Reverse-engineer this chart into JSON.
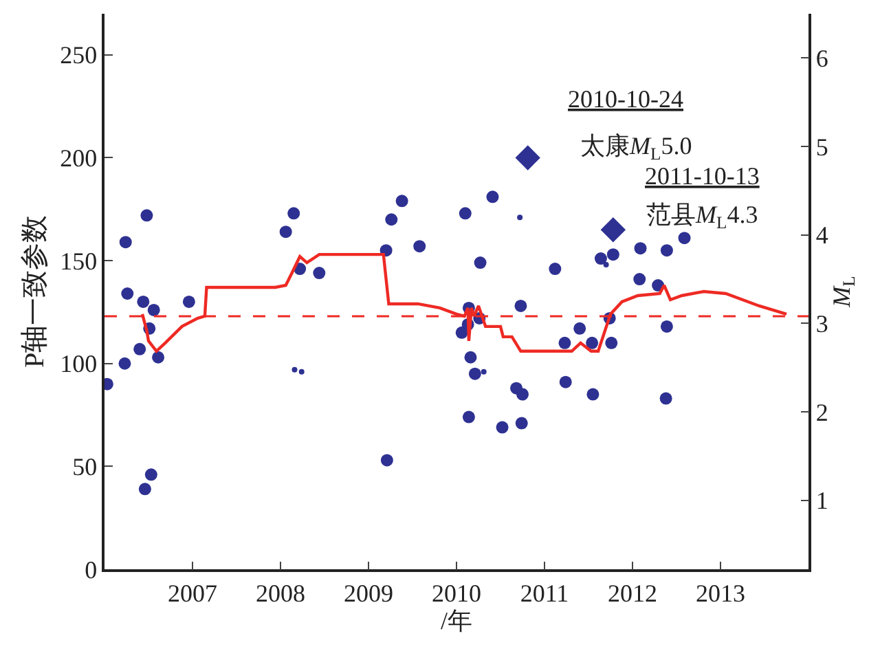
{
  "chart_data": {
    "type": "scatter",
    "xlabel": "/年",
    "ylabel": "P轴一致参数",
    "y2label": "M$_{L}$",
    "xlim": [
      2006,
      2014
    ],
    "xticks": [
      2007,
      2008,
      2009,
      2010,
      2011,
      2012,
      2013
    ],
    "ylim": [
      0,
      270
    ],
    "yticks": [
      0,
      50,
      100,
      150,
      200,
      250
    ],
    "y2lim": [
      0.22,
      6.5
    ],
    "y2ticks": [
      1,
      2,
      3,
      4,
      5,
      6
    ],
    "series": [
      {
        "marker": "circle",
        "color": "#2e3192",
        "x": [
          2006.03,
          2006.23,
          2006.24,
          2006.26,
          2006.4,
          2006.44,
          2006.46,
          2006.48,
          2006.51,
          2006.53,
          2006.56,
          2006.61,
          2006.96,
          2008.06,
          2008.15,
          2008.22,
          2008.44,
          2009.2,
          2009.21,
          2009.26,
          2009.38,
          2009.58,
          2010.06,
          2010.1,
          2010.13,
          2010.14,
          2010.14,
          2010.16,
          2010.21,
          2010.26,
          2010.27,
          2010.41,
          2010.52,
          2010.68,
          2010.73,
          2010.74,
          2010.75,
          2011.12,
          2011.23,
          2011.24,
          2011.4,
          2011.54,
          2011.55,
          2011.64,
          2011.74,
          2011.76,
          2011.78,
          2012.08,
          2012.09,
          2012.29,
          2012.39,
          2012.39,
          2012.38,
          2012.59
        ],
        "values": [
          90,
          100,
          159,
          134,
          107,
          130,
          39,
          172,
          117,
          46,
          126,
          103,
          130,
          164,
          173,
          146,
          144,
          155,
          53,
          170,
          179,
          157,
          115,
          173,
          119,
          127,
          74,
          103,
          95,
          122,
          149,
          181,
          69,
          88,
          128,
          71,
          85,
          146,
          110,
          91,
          117,
          110,
          85,
          151,
          122,
          110,
          153,
          141,
          156,
          138,
          155,
          118,
          83,
          161
        ]
      },
      {
        "marker": "circle",
        "color": "#2e3192",
        "x": [
          2008.16,
          2008.24,
          2010.31,
          2010.72,
          2011.7
        ],
        "values": [
          97,
          96,
          96,
          171,
          148
        ]
      },
      {
        "marker": "diamond",
        "color": "#2e3192",
        "x": [
          2010.81,
          2011.78
        ],
        "values": [
          200,
          165
        ]
      },
      {
        "type": "line",
        "marker": "none",
        "color": "#ee2a24",
        "x": [
          2006.43,
          2006.48,
          2006.5,
          2006.59,
          2006.69,
          2006.88,
          2007.06,
          2007.14,
          2007.16,
          2007.94,
          2008.06,
          2008.13,
          2008.22,
          2008.3,
          2008.44,
          2009.17,
          2009.23,
          2009.56,
          2009.81,
          2010.0,
          2010.09,
          2010.13,
          2010.14,
          2010.17,
          2010.2,
          2010.25,
          2010.33,
          2010.5,
          2010.53,
          2010.63,
          2010.73,
          2011.31,
          2011.41,
          2011.53,
          2011.61,
          2011.75,
          2011.88,
          2012.06,
          2012.31,
          2012.36,
          2012.43,
          2012.56,
          2012.81,
          2013.06,
          2013.44,
          2013.75
        ],
        "values": [
          124,
          116,
          111,
          106,
          110,
          118,
          122,
          123,
          137,
          137,
          138,
          144,
          152,
          149,
          153,
          153,
          129,
          129,
          127,
          124,
          123,
          127,
          111,
          127,
          123,
          128,
          118,
          118,
          113,
          113,
          106,
          106,
          110,
          106,
          106,
          124,
          130,
          133,
          134,
          138,
          131,
          133,
          135,
          134,
          128,
          124
        ]
      }
    ],
    "ref_lines": [
      {
        "axis": "y",
        "value": 123,
        "color": "#ee2a24",
        "line_style": "dashed"
      }
    ],
    "annotations": [
      "2010-10-24",
      "太康M$_{L}$5.0",
      "2011-10-13",
      "范县M$_{L}$4.3"
    ]
  }
}
